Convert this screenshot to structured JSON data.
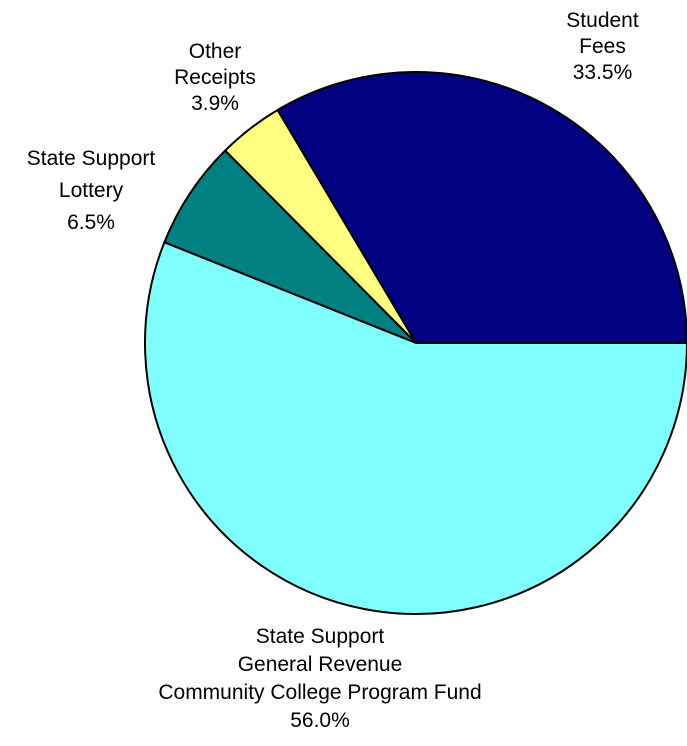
{
  "chart_data": {
    "type": "pie",
    "title": "",
    "slices": [
      {
        "lines": [
          "Student",
          "Fees"
        ],
        "pct_label": "33.5%",
        "value": 33.5,
        "color": "#000080"
      },
      {
        "lines": [
          "Other",
          "Receipts"
        ],
        "pct_label": "3.9%",
        "value": 3.9,
        "color": "#FFFF80"
      },
      {
        "lines": [
          "State Support",
          "Lottery"
        ],
        "pct_label": "6.5%",
        "value": 6.5,
        "color": "#008080"
      },
      {
        "lines": [
          "State Support",
          "General Revenue",
          "Community College Program Fund"
        ],
        "pct_label": "56.0%",
        "value": 56.0,
        "color": "#80FFFF"
      }
    ]
  }
}
